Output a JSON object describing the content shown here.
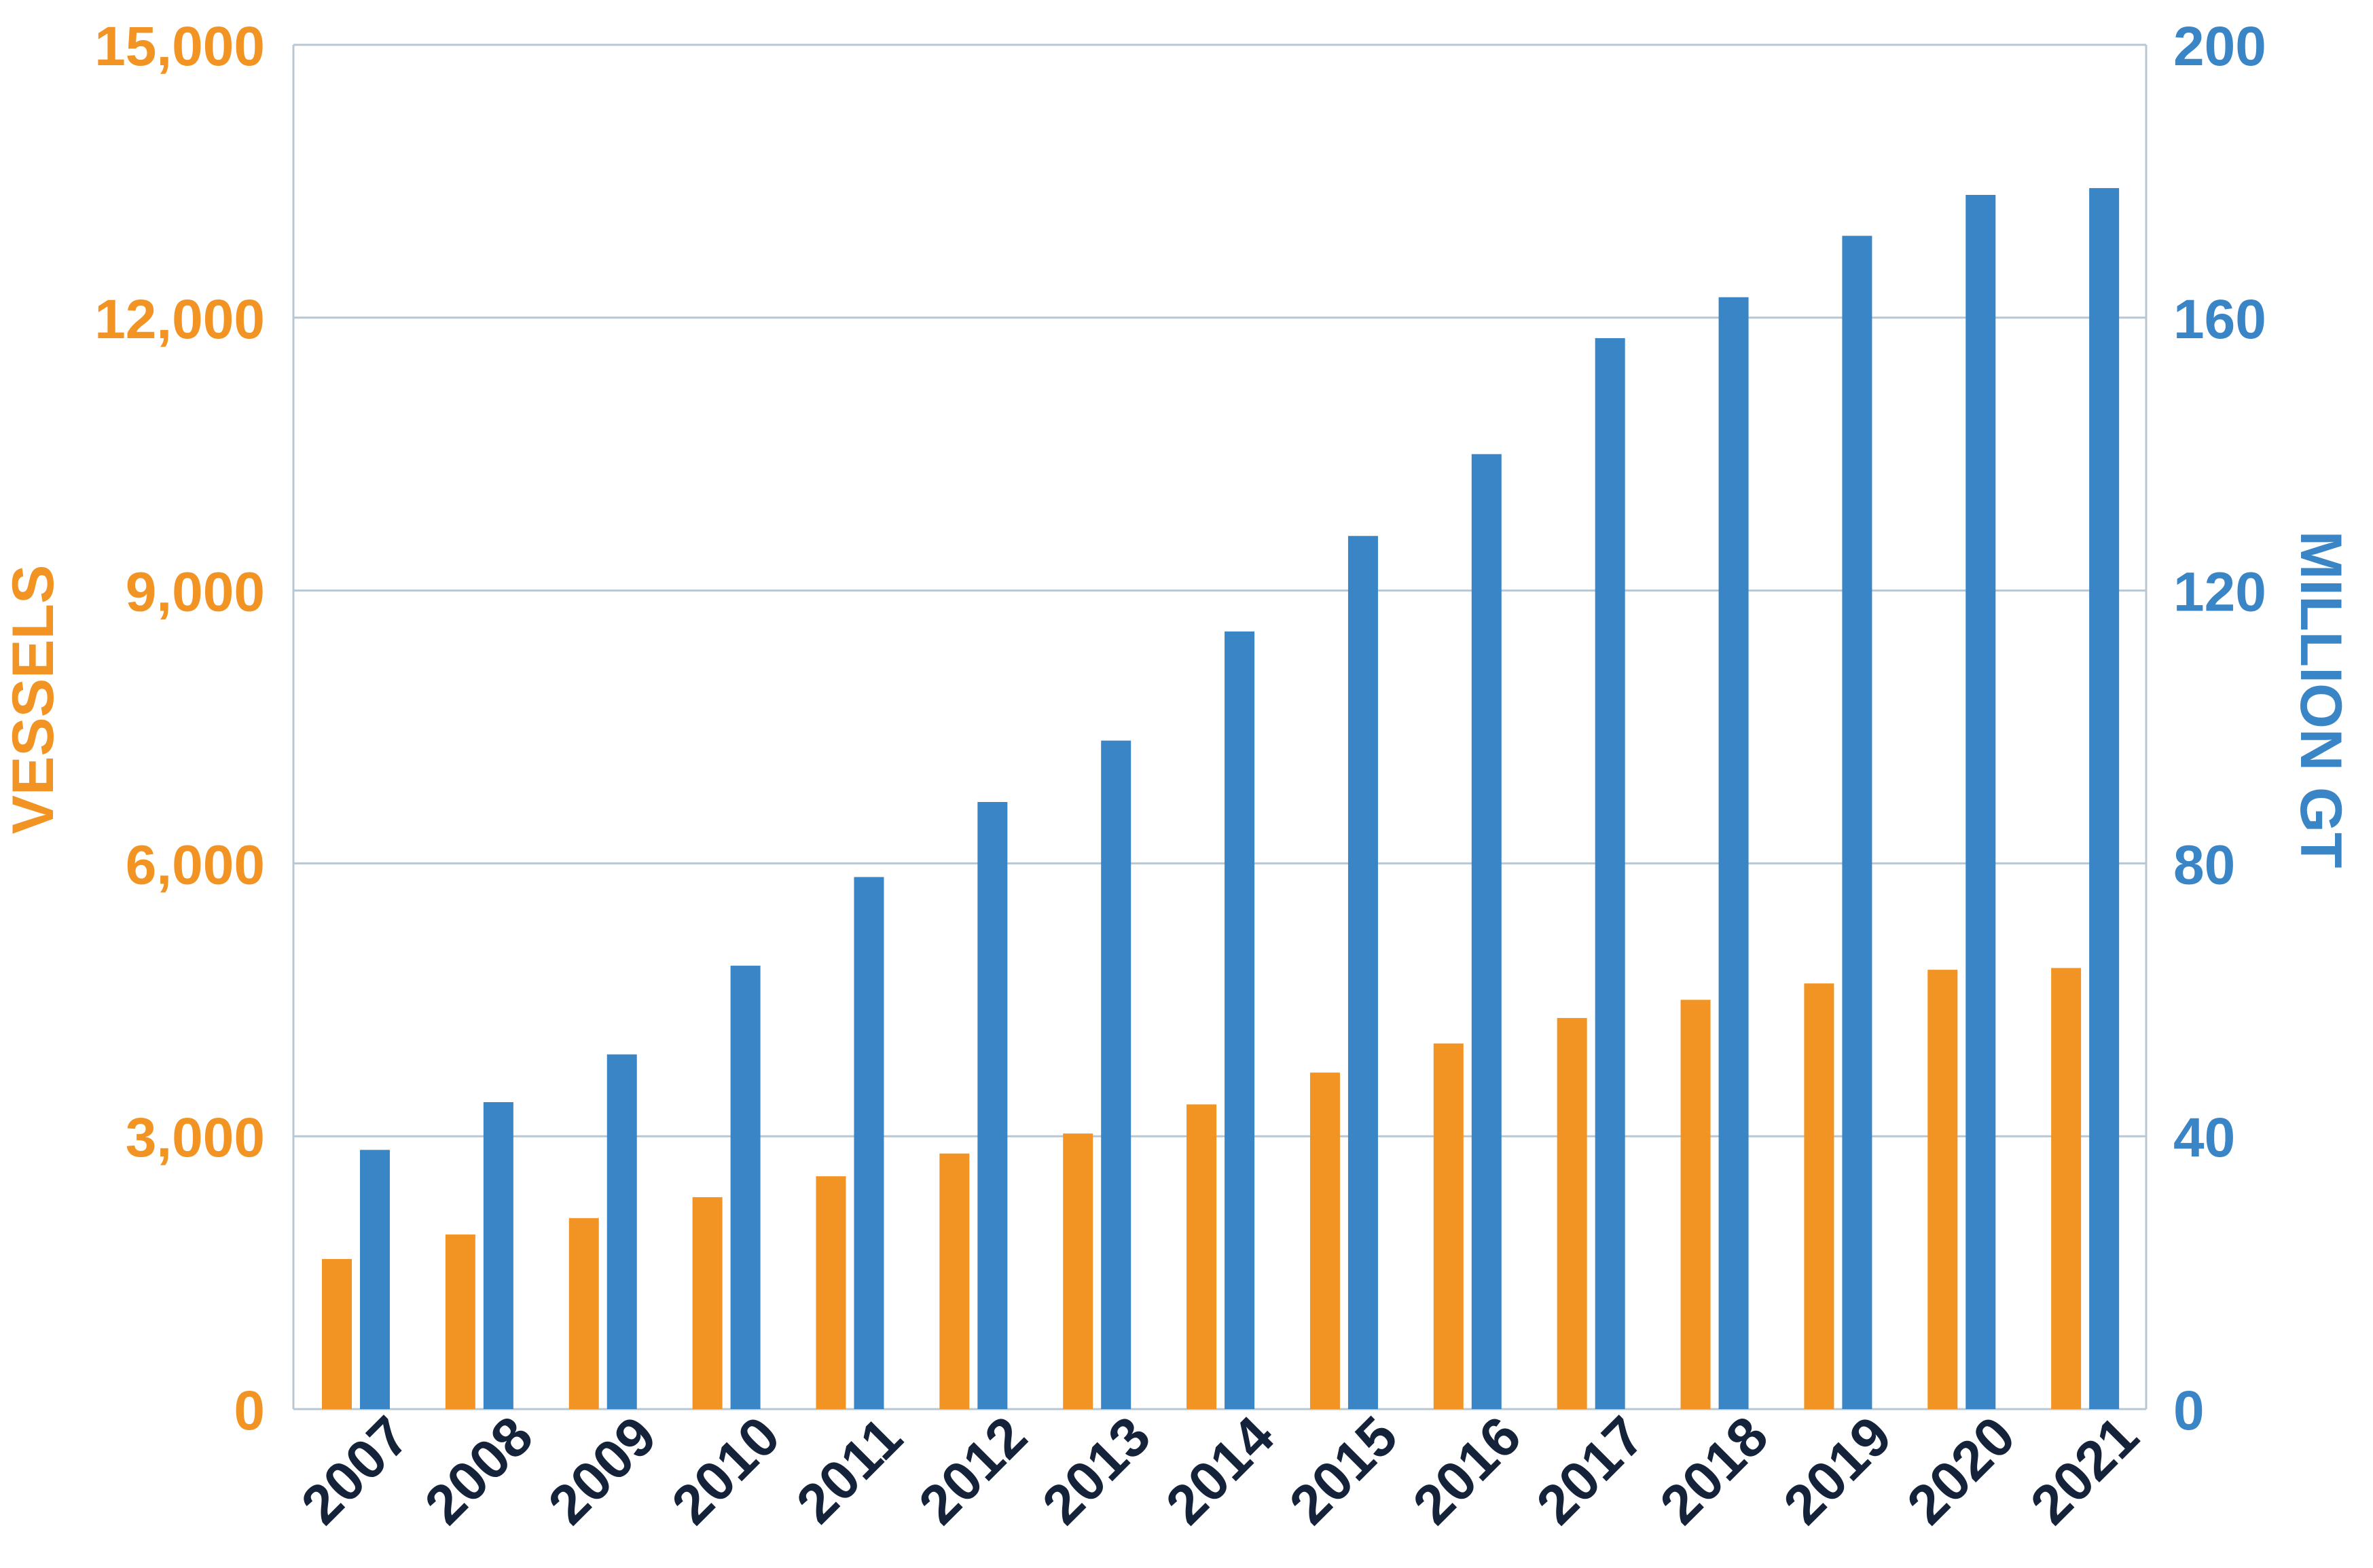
{
  "colors": {
    "vessels": "#F29423",
    "gt": "#3A85C6",
    "category_text": "#14233A",
    "grid": "#B9C7D3"
  },
  "chart_data": {
    "type": "bar",
    "categories": [
      "2007",
      "2008",
      "2009",
      "2010",
      "2011",
      "2012",
      "2013",
      "2014",
      "2015",
      "2016",
      "2017",
      "2018",
      "2019",
      "2020",
      "2021"
    ],
    "series": [
      {
        "axis": "left",
        "color": "#F29423",
        "values": [
          1650,
          1920,
          2100,
          2330,
          2560,
          2810,
          3030,
          3350,
          3700,
          4020,
          4300,
          4500,
          4680,
          4830,
          4850
        ]
      },
      {
        "axis": "right",
        "color": "#3A85C6",
        "values": [
          38,
          45,
          52,
          65,
          78,
          89,
          98,
          114,
          128,
          140,
          157,
          163,
          172,
          178,
          179
        ]
      }
    ],
    "ylabel": "VESSELS",
    "y2label": "MILLION GT",
    "ylim": [
      0,
      15000
    ],
    "y2lim": [
      0,
      200
    ],
    "yticks": [
      "0",
      "3,000",
      "6,000",
      "9,000",
      "12,000",
      "15,000"
    ],
    "y2ticks": [
      "0",
      "40",
      "80",
      "120",
      "160",
      "200"
    ],
    "grid": true,
    "legend": "none"
  }
}
